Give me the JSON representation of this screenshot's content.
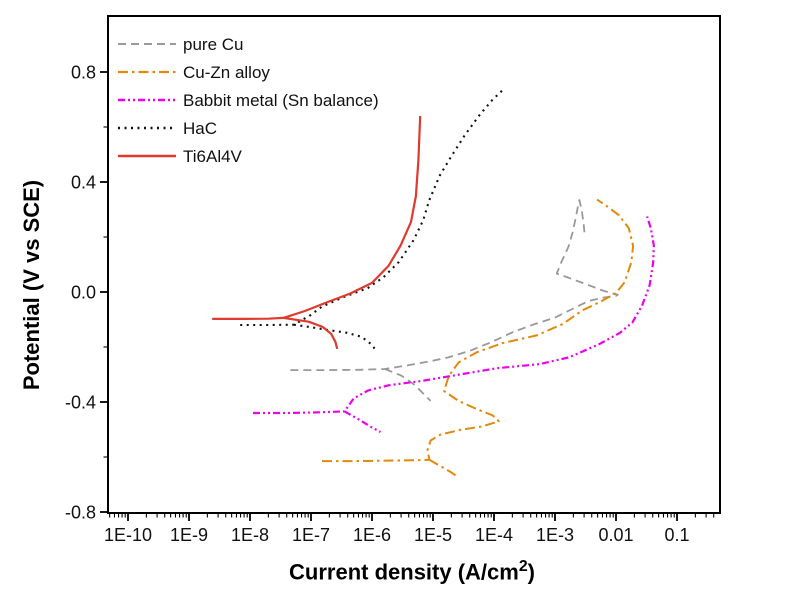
{
  "chart_data": {
    "type": "line",
    "title": "",
    "xlabel": "Current density (A/cm2)",
    "xlabel_parts": {
      "prefix": "Current density (A/cm",
      "sup": "2",
      "suffix": ")"
    },
    "ylabel": "Potential (V vs SCE)",
    "x_scale": "log",
    "grid": false,
    "legend_position": "top-left",
    "xlim_log": [
      -10.33,
      -0.3
    ],
    "ylim": [
      -0.8,
      0.8
    ],
    "x_ticks": [
      {
        "label": "1E-10",
        "log": -10
      },
      {
        "label": "1E-9",
        "log": -9
      },
      {
        "label": "1E-8",
        "log": -8
      },
      {
        "label": "1E-7",
        "log": -7
      },
      {
        "label": "1E-6",
        "log": -6
      },
      {
        "label": "1E-5",
        "log": -5
      },
      {
        "label": "1E-4",
        "log": -4
      },
      {
        "label": "1E-3",
        "log": -3
      },
      {
        "label": "0.01",
        "log": -2
      },
      {
        "label": "0.1",
        "log": -1
      }
    ],
    "y_ticks": [
      {
        "label": "0.8",
        "value": 0.8
      },
      {
        "label": "0.4",
        "value": 0.4
      },
      {
        "label": "0.0",
        "value": 0.0
      },
      {
        "label": "-0.4",
        "value": -0.4
      },
      {
        "label": "-0.8",
        "value": -0.8
      }
    ],
    "y_minor_ticks": [
      0.6,
      0.2,
      -0.2,
      -0.6
    ],
    "series": [
      {
        "name": "pure Cu",
        "color": "#999999",
        "style": "dashed",
        "dash": "8 5",
        "width": 1.8,
        "segments": [
          [
            [
              -7.34,
              -0.284
            ],
            [
              -6.8,
              -0.284
            ],
            [
              -6.2,
              -0.283
            ],
            [
              -5.79,
              -0.28
            ],
            [
              -5.45,
              -0.268
            ],
            [
              -5.1,
              -0.254
            ],
            [
              -4.75,
              -0.238
            ],
            [
              -4.4,
              -0.214
            ],
            [
              -4.05,
              -0.183
            ],
            [
              -3.7,
              -0.147
            ],
            [
              -3.35,
              -0.118
            ],
            [
              -3.0,
              -0.093
            ],
            [
              -2.7,
              -0.06
            ],
            [
              -2.45,
              -0.033
            ],
            [
              -2.2,
              -0.02
            ],
            [
              -2.0,
              -0.014
            ],
            [
              -1.97,
              -0.01
            ],
            [
              -2.2,
              0.004
            ],
            [
              -2.55,
              0.033
            ],
            [
              -2.85,
              0.058
            ],
            [
              -2.97,
              0.067
            ],
            [
              -2.9,
              0.107
            ],
            [
              -2.78,
              0.164
            ],
            [
              -2.71,
              0.218
            ],
            [
              -2.66,
              0.269
            ],
            [
              -2.62,
              0.316
            ],
            [
              -2.6,
              0.334
            ],
            [
              -2.56,
              0.296
            ],
            [
              -2.53,
              0.245
            ],
            [
              -2.51,
              0.2
            ]
          ],
          [
            [
              -5.79,
              -0.28
            ],
            [
              -5.52,
              -0.304
            ],
            [
              -5.3,
              -0.338
            ],
            [
              -5.16,
              -0.369
            ],
            [
              -5.04,
              -0.396
            ]
          ]
        ]
      },
      {
        "name": "Cu-Zn alloy",
        "color": "#E2880A",
        "style": "dash-dot",
        "dash": "10 4 2.5 4",
        "width": 2,
        "segments": [
          [
            [
              -6.82,
              -0.615
            ],
            [
              -6.3,
              -0.615
            ],
            [
              -5.75,
              -0.613
            ],
            [
              -5.3,
              -0.612
            ],
            [
              -5.06,
              -0.61
            ],
            [
              -5.09,
              -0.575
            ],
            [
              -5.04,
              -0.54
            ],
            [
              -4.88,
              -0.519
            ],
            [
              -4.55,
              -0.501
            ],
            [
              -4.2,
              -0.489
            ],
            [
              -3.92,
              -0.47
            ],
            [
              -4.02,
              -0.449
            ],
            [
              -4.3,
              -0.424
            ],
            [
              -4.58,
              -0.396
            ],
            [
              -4.82,
              -0.36
            ],
            [
              -4.74,
              -0.305
            ],
            [
              -4.58,
              -0.256
            ],
            [
              -4.28,
              -0.219
            ],
            [
              -3.86,
              -0.186
            ],
            [
              -3.3,
              -0.158
            ],
            [
              -2.87,
              -0.116
            ],
            [
              -2.56,
              -0.068
            ],
            [
              -2.26,
              -0.036
            ],
            [
              -2.0,
              -0.004
            ],
            [
              -1.86,
              0.035
            ],
            [
              -1.75,
              0.108
            ],
            [
              -1.72,
              0.168
            ],
            [
              -1.79,
              0.232
            ],
            [
              -1.95,
              0.279
            ],
            [
              -2.16,
              0.314
            ],
            [
              -2.31,
              0.336
            ]
          ],
          [
            [
              -5.06,
              -0.61
            ],
            [
              -4.84,
              -0.638
            ],
            [
              -4.7,
              -0.656
            ],
            [
              -4.59,
              -0.673
            ]
          ]
        ]
      },
      {
        "name": "Babbit metal (Sn balance)",
        "color": "#EE00EE",
        "style": "dash-dot-dot",
        "dash": "7 3 2 3 2 3",
        "width": 2.2,
        "segments": [
          [
            [
              -7.95,
              -0.44
            ],
            [
              -7.4,
              -0.44
            ],
            [
              -6.9,
              -0.438
            ],
            [
              -6.45,
              -0.434
            ],
            [
              -6.3,
              -0.387
            ],
            [
              -6.06,
              -0.358
            ],
            [
              -5.72,
              -0.339
            ],
            [
              -5.2,
              -0.324
            ],
            [
              -4.64,
              -0.303
            ],
            [
              -3.95,
              -0.277
            ],
            [
              -3.25,
              -0.262
            ],
            [
              -2.76,
              -0.237
            ],
            [
              -2.28,
              -0.19
            ],
            [
              -1.94,
              -0.149
            ],
            [
              -1.73,
              -0.11
            ],
            [
              -1.57,
              -0.048
            ],
            [
              -1.45,
              0.024
            ],
            [
              -1.39,
              0.108
            ],
            [
              -1.38,
              0.17
            ],
            [
              -1.43,
              0.232
            ],
            [
              -1.49,
              0.275
            ]
          ],
          [
            [
              -6.45,
              -0.434
            ],
            [
              -6.22,
              -0.463
            ],
            [
              -6.02,
              -0.49
            ],
            [
              -5.86,
              -0.509
            ]
          ]
        ]
      },
      {
        "name": "HaC",
        "color": "#111111",
        "style": "dotted",
        "dash": "2 4.5",
        "width": 2.1,
        "segments": [
          [
            [
              -8.16,
              -0.12
            ],
            [
              -7.7,
              -0.12
            ],
            [
              -7.28,
              -0.119
            ],
            [
              -7.02,
              -0.086
            ],
            [
              -6.82,
              -0.053
            ],
            [
              -6.47,
              -0.019
            ],
            [
              -6.07,
              0.014
            ],
            [
              -5.81,
              0.054
            ],
            [
              -5.56,
              0.109
            ],
            [
              -5.32,
              0.188
            ],
            [
              -5.16,
              0.261
            ],
            [
              -5.06,
              0.334
            ],
            [
              -4.89,
              0.423
            ],
            [
              -4.71,
              0.49
            ],
            [
              -4.48,
              0.57
            ],
            [
              -4.24,
              0.643
            ],
            [
              -4.03,
              0.698
            ],
            [
              -3.82,
              0.742
            ]
          ],
          [
            [
              -7.28,
              -0.119
            ],
            [
              -7.0,
              -0.128
            ],
            [
              -6.7,
              -0.139
            ],
            [
              -6.42,
              -0.148
            ],
            [
              -6.17,
              -0.163
            ],
            [
              -6.01,
              -0.19
            ],
            [
              -5.93,
              -0.214
            ]
          ]
        ]
      },
      {
        "name": "Ti6Al4V",
        "color": "#E0392E",
        "style": "solid",
        "dash": "",
        "width": 2.2,
        "segments": [
          [
            [
              -8.62,
              -0.098
            ],
            [
              -8.1,
              -0.098
            ],
            [
              -7.7,
              -0.097
            ],
            [
              -7.45,
              -0.094
            ],
            [
              -7.1,
              -0.069
            ],
            [
              -6.72,
              -0.036
            ],
            [
              -6.36,
              -0.006
            ],
            [
              -6.0,
              0.033
            ],
            [
              -5.73,
              0.095
            ],
            [
              -5.53,
              0.17
            ],
            [
              -5.36,
              0.255
            ],
            [
              -5.28,
              0.349
            ],
            [
              -5.24,
              0.48
            ],
            [
              -5.21,
              0.64
            ]
          ],
          [
            [
              -7.45,
              -0.094
            ],
            [
              -7.04,
              -0.108
            ],
            [
              -6.81,
              -0.127
            ],
            [
              -6.67,
              -0.152
            ],
            [
              -6.6,
              -0.181
            ],
            [
              -6.57,
              -0.207
            ]
          ]
        ]
      }
    ]
  }
}
